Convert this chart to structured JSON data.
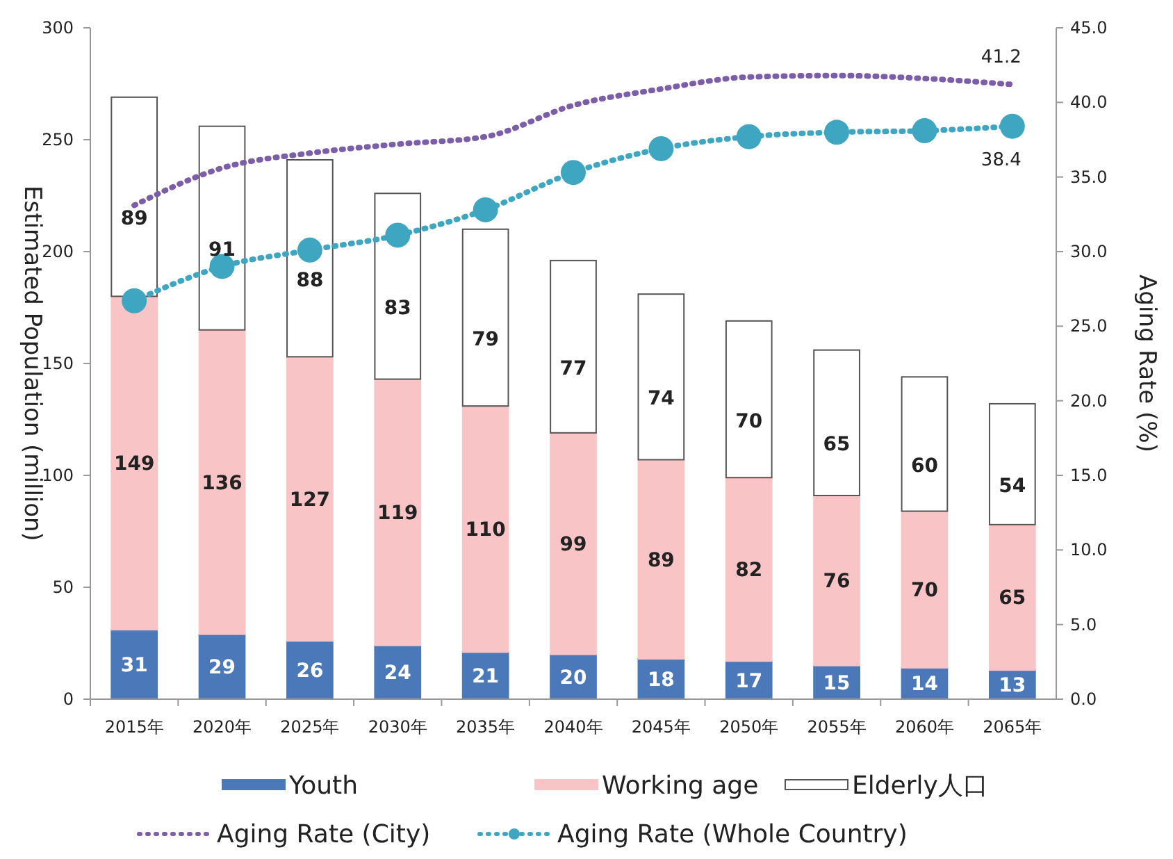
{
  "chart_data": {
    "type": "bar",
    "stacked": true,
    "categories": [
      "2015年",
      "2020年",
      "2025年",
      "2030年",
      "2035年",
      "2040年",
      "2045年",
      "2050年",
      "2055年",
      "2060年",
      "2065年"
    ],
    "ylabel": "Estimated Population (million)",
    "y2label": "Aging Rate (%)",
    "ylim": [
      0,
      300
    ],
    "yticks": [
      0,
      50,
      100,
      150,
      200,
      250,
      300
    ],
    "y2lim": [
      0,
      45
    ],
    "y2ticks": [
      {
        "value": 0,
        "label": "0.0"
      },
      {
        "value": 5,
        "label": "5.0"
      },
      {
        "value": 10,
        "label": "10.0"
      },
      {
        "value": 15,
        "label": "15.0"
      },
      {
        "value": 20,
        "label": "20.0"
      },
      {
        "value": 25,
        "label": "25.0"
      },
      {
        "value": 30,
        "label": "30.0"
      },
      {
        "value": 35,
        "label": "35.0"
      },
      {
        "value": 40,
        "label": "40.0"
      },
      {
        "value": 45,
        "label": "45.0"
      }
    ],
    "legend": "bottom",
    "grid": false,
    "series": [
      {
        "name": "Youth",
        "color": "#4a78b8",
        "values": [
          31,
          29,
          26,
          24,
          21,
          20,
          18,
          17,
          15,
          14,
          13
        ],
        "value_labels": [
          "31",
          "29",
          "26",
          "24",
          "21",
          "20",
          "18",
          "17",
          "15",
          "14",
          "13"
        ]
      },
      {
        "name": "Working age",
        "color": "#f8c4c6",
        "values": [
          149,
          136,
          127,
          119,
          110,
          99,
          89,
          82,
          76,
          70,
          65
        ],
        "value_labels": [
          "149",
          "136",
          "127",
          "119",
          "110",
          "99",
          "89",
          "82",
          "76",
          "70",
          "65"
        ]
      },
      {
        "name": "Elderly人口",
        "color": "#ffffff",
        "values": [
          89,
          91,
          88,
          83,
          79,
          77,
          74,
          70,
          65,
          60,
          54
        ],
        "value_labels": [
          "89",
          "91",
          "88",
          "83",
          "79",
          "77",
          "74",
          "70",
          "65",
          "60",
          "54"
        ]
      },
      {
        "name": "Aging Rate (City)",
        "type": "line",
        "axis": "y2",
        "color": "#7b5ea7",
        "marker": "none",
        "line_style": "dotted",
        "values": [
          33.1,
          35.6,
          36.6,
          37.2,
          37.7,
          39.8,
          40.9,
          41.7,
          41.8,
          41.6,
          41.2
        ],
        "value_labels": [
          null,
          null,
          null,
          null,
          null,
          null,
          null,
          null,
          null,
          null,
          "41.2"
        ]
      },
      {
        "name": "Aging Rate (Whole Country)",
        "type": "line",
        "axis": "y2",
        "color": "#3fa6c2",
        "marker": "circle",
        "line_style": "dotted",
        "values": [
          26.7,
          29.0,
          30.1,
          31.1,
          32.8,
          35.3,
          36.9,
          37.7,
          38.0,
          38.1,
          38.4
        ],
        "value_labels": [
          null,
          null,
          null,
          null,
          null,
          null,
          null,
          null,
          null,
          null,
          "38.4"
        ]
      }
    ]
  }
}
